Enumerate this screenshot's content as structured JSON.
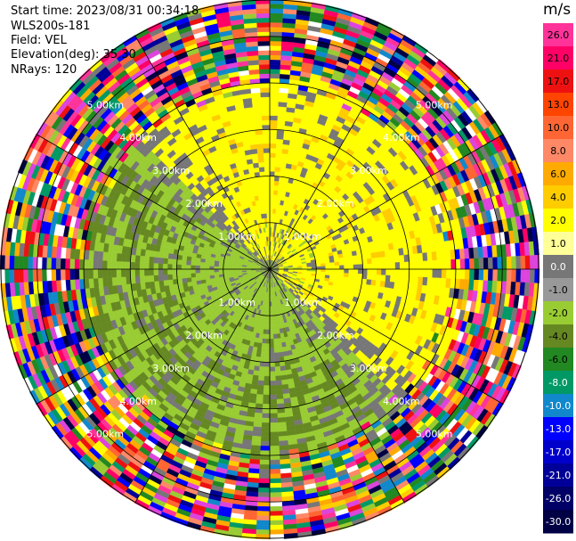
{
  "info": {
    "start_time": "Start time: 2023/08/31 00:34:18",
    "instrument": "WLS200s-181",
    "field": "Field: VEL",
    "elevation": "Elevation(deg): 35.30",
    "nrays": "NRays: 120"
  },
  "chart_data": {
    "type": "heatmap",
    "subtype": "polar-ppi",
    "field": "VEL",
    "elevation_deg": 35.3,
    "n_rays": 120,
    "range_rings_km": [
      1.0,
      2.0,
      3.0,
      4.0,
      5.0
    ],
    "ring_labels": [
      "1.00km",
      "2.00km",
      "3.00km",
      "4.00km",
      "5.00km"
    ],
    "max_range_km": 5.8,
    "spokes_deg": [
      0,
      30,
      60,
      90,
      120,
      150,
      180,
      210,
      240,
      270,
      300,
      330
    ],
    "colorbar": {
      "unit": "m/s",
      "tick_labels": [
        "26.0",
        "21.0",
        "17.0",
        "13.0",
        "10.0",
        "8.0",
        "6.0",
        "4.0",
        "2.0",
        "1.0",
        "0.0",
        "-1.0",
        "-2.0",
        "-4.0",
        "-6.0",
        "-8.0",
        "-10.0",
        "-13.0",
        "-17.0",
        "-21.0",
        "-26.0",
        "-30.0"
      ],
      "colors": [
        "#ff3399",
        "#ff0066",
        "#ee1111",
        "#ff4400",
        "#ff6633",
        "#ff8866",
        "#ffaa00",
        "#ffcc00",
        "#ffff00",
        "#ffff99",
        "#777777",
        "#999999",
        "#99cc33",
        "#668822",
        "#228822",
        "#009966",
        "#1188cc",
        "#0000ff",
        "#0000cc",
        "#000099",
        "#000066",
        "#000044"
      ]
    },
    "pattern": {
      "inner_positive_sector": "north-east, yellow (~2 to 4 m/s)",
      "inner_negative_sector": "south-west, green (~-2 to -4 m/s)",
      "near_zero": "grey around center",
      "outer_noise_beyond_km": 3.8
    }
  }
}
